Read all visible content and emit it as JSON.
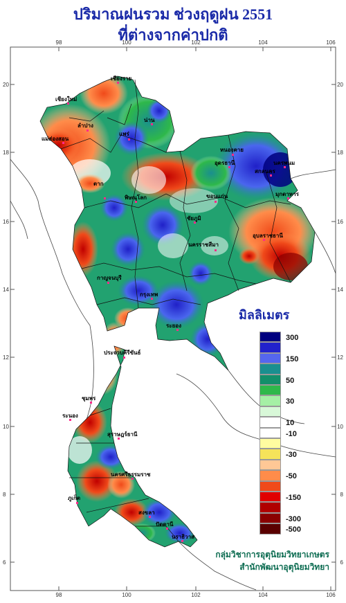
{
  "title_line1": "ปริมาณฝนรวม ช่วงฤดูฝน 2551",
  "title_line2": "ที่ต่างจากค่าปกติ",
  "axis": {
    "x_ticks": [
      "98",
      "100",
      "102",
      "104",
      "106"
    ],
    "y_ticks": [
      "20",
      "18",
      "16",
      "14",
      "12",
      "10",
      "8",
      "6"
    ]
  },
  "legend": {
    "title": "มิลลิเมตร",
    "classes": [
      {
        "color": "#00007f",
        "label": "300"
      },
      {
        "color": "#2222cc",
        "label": ""
      },
      {
        "color": "#5566ee",
        "label": "150"
      },
      {
        "color": "#1a8f8f",
        "label": ""
      },
      {
        "color": "#138f6a",
        "label": "50"
      },
      {
        "color": "#2eb84a",
        "label": ""
      },
      {
        "color": "#a5f0a5",
        "label": "30"
      },
      {
        "color": "#d8f8d8",
        "label": ""
      },
      {
        "color": "#ffffff",
        "label": "10"
      },
      {
        "color": "#ffffff",
        "label": "-10"
      },
      {
        "color": "#fffca0",
        "label": ""
      },
      {
        "color": "#f5e35a",
        "label": "-30"
      },
      {
        "color": "#ffc896",
        "label": ""
      },
      {
        "color": "#ff8c4a",
        "label": "-50"
      },
      {
        "color": "#f04a1a",
        "label": ""
      },
      {
        "color": "#e00000",
        "label": "-150"
      },
      {
        "color": "#b00000",
        "label": ""
      },
      {
        "color": "#8a0000",
        "label": "-300"
      },
      {
        "color": "#5a0000",
        "label": "-500"
      }
    ]
  },
  "places": [
    "เชียงราย",
    "เชียงใหม่",
    "น่าน",
    "ลำปาง",
    "แพร่",
    "แม่ฮ่องสอน",
    "หนองคาย",
    "อุดรธานี",
    "สกลนคร",
    "นครพนม",
    "มุกดาหาร",
    "ขอนแก่น",
    "พิษณุโลก",
    "ตาก",
    "อุบลราชธานี",
    "นครราชสีมา",
    "ชัยภูมิ",
    "กาญจนบุรี",
    "กรุงเทพ",
    "ระยอง",
    "ประจวบคีรีขันธ์",
    "ชุมพร",
    "ระนอง",
    "สุราษฎร์ธานี",
    "นครศรีธรรมราช",
    "ภูเก็ต",
    "สงขลา",
    "ปัตตานี",
    "นราธิวาส"
  ],
  "credits": {
    "line1": "กลุ่มวิชาการอุตุนิยมวิทยาเกษตร",
    "line2": "สำนักพัฒนาอุตุนิยมวิทยา"
  }
}
